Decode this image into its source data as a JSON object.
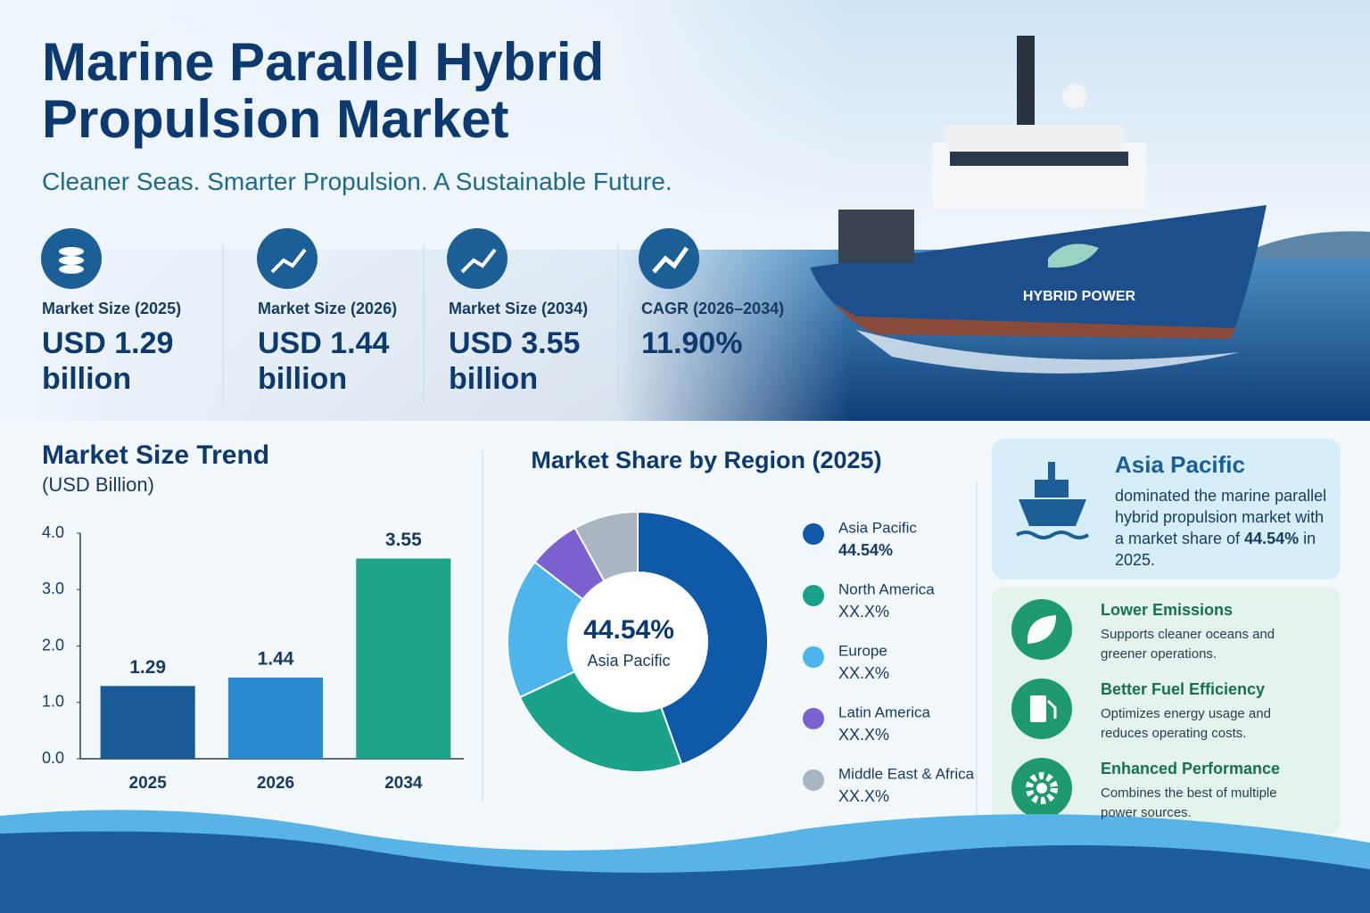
{
  "header": {
    "title": "Marine Parallel Hybrid Propulsion Market",
    "subtitle": "Cleaner Seas. Smarter Propulsion. A Sustainable Future."
  },
  "stats": [
    {
      "label": "Market Size (2025)",
      "value": "USD 1.29 billion"
    },
    {
      "label": "Market Size (2026)",
      "value": "USD 1.44 billion"
    },
    {
      "label": "Market Size (2034)",
      "value": "USD 3.55 billion"
    },
    {
      "label": "CAGR (2026–2034)",
      "value": "11.90%"
    }
  ],
  "ship_label": "HYBRID POWER",
  "chart_data": [
    {
      "type": "bar",
      "title": "Market Size Trend",
      "subtitle": "(USD Billion)",
      "categories": [
        "2025",
        "2026",
        "2034"
      ],
      "values": [
        1.29,
        1.44,
        3.55
      ],
      "colors": [
        "#1a5a96",
        "#2a8bd0",
        "#1fa388"
      ],
      "ylim": [
        0,
        4
      ],
      "yticks": [
        {
          "value": 0,
          "label": "0.0"
        },
        {
          "value": 1,
          "label": "1.0"
        },
        {
          "value": 2,
          "label": "2.0"
        },
        {
          "value": 3,
          "label": "3.0"
        },
        {
          "value": 4,
          "label": "4.0"
        }
      ]
    },
    {
      "type": "pie",
      "donut": true,
      "title": "Market Share by Region (2025)",
      "categories": [
        "Asia Pacific",
        "North America",
        "Europe",
        "Latin America",
        "Middle East & Africa"
      ],
      "values": [
        44.54,
        23.5,
        17.5,
        6.5,
        8.0
      ],
      "value_labels": [
        "44.54%",
        "XX.X%",
        "XX.X%",
        "XX.X%",
        "XX.X%"
      ],
      "colors": [
        "#0f5aa8",
        "#1aa38a",
        "#4db5ea",
        "#7b62d0",
        "#a9b5c0"
      ]
    }
  ],
  "region_card": {
    "title": "Asia Pacific",
    "text_before": "dominated the marine parallel hybrid propulsion market with a market share of",
    "highlight": "44.54%",
    "text_after": "in 2025."
  },
  "highlights": [
    {
      "title": "Lower Emissions",
      "text": "Supports cleaner oceans and greener operations."
    },
    {
      "title": "Better Fuel Efficiency",
      "text": "Optimizes energy usage and reduces operating costs."
    },
    {
      "title": "Enhanced Performance",
      "text": "Combines the best of multiple power sources."
    }
  ]
}
